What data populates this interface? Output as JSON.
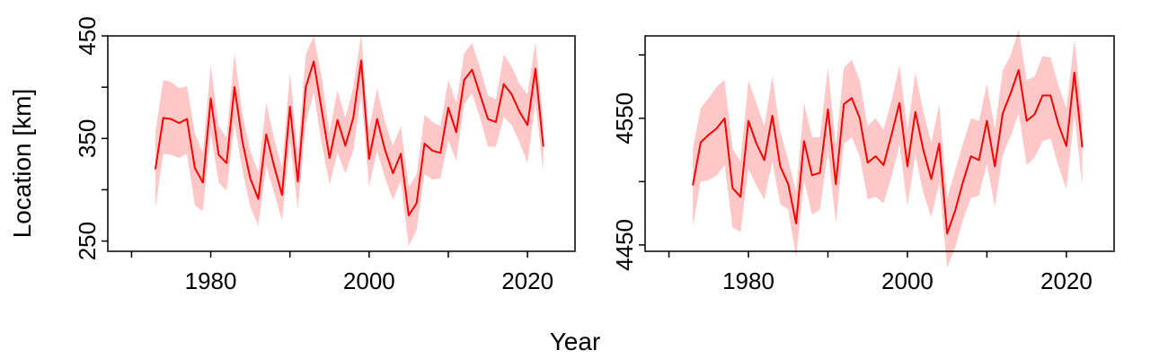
{
  "figure": {
    "shared_xlabel": "Year",
    "shared_ylabel": "Location [km]",
    "colors": {
      "line": "#ff0000",
      "band": "#ffc8c8",
      "axis": "#000000",
      "background": "#ffffff"
    }
  },
  "chart_data": [
    {
      "type": "line",
      "title": "",
      "xlabel": "Year",
      "ylabel": "Location [km]",
      "xlim": [
        1967,
        2026
      ],
      "ylim": [
        240,
        450
      ],
      "xticks": [
        1970,
        1980,
        1990,
        2000,
        2010,
        2020
      ],
      "xtick_labels": [
        "",
        "1980",
        "",
        "2000",
        "",
        "2020"
      ],
      "yticks": [
        250,
        300,
        350,
        400,
        450
      ],
      "ytick_labels": [
        "250",
        "",
        "350",
        "",
        "450"
      ],
      "grid": false,
      "legend": "none",
      "x": [
        1973,
        1974,
        1975,
        1976,
        1977,
        1978,
        1979,
        1980,
        1981,
        1982,
        1983,
        1984,
        1985,
        1986,
        1987,
        1988,
        1989,
        1990,
        1991,
        1992,
        1993,
        1994,
        1995,
        1996,
        1997,
        1998,
        1999,
        2000,
        2001,
        2002,
        2003,
        2004,
        2005,
        2006,
        2007,
        2008,
        2009,
        2010,
        2011,
        2012,
        2013,
        2014,
        2015,
        2016,
        2017,
        2018,
        2019,
        2020,
        2021,
        2022
      ],
      "series": [
        {
          "values": [
            320,
            370,
            369,
            365,
            369,
            321,
            307,
            389,
            334,
            326,
            400,
            347,
            311,
            291,
            354,
            323,
            295,
            381,
            308,
            400,
            425,
            378,
            331,
            368,
            343,
            370,
            426,
            330,
            369,
            339,
            316,
            335,
            275,
            287,
            345,
            338,
            336,
            380,
            356,
            407,
            417,
            393,
            369,
            366,
            403,
            393,
            376,
            363,
            418,
            342
          ],
          "lower": [
            282,
            335,
            334,
            331,
            335,
            285,
            279,
            355,
            307,
            299,
            365,
            319,
            283,
            265,
            323,
            297,
            270,
            347,
            281,
            365,
            395,
            345,
            305,
            336,
            316,
            338,
            393,
            303,
            338,
            312,
            290,
            309,
            245,
            261,
            315,
            310,
            311,
            348,
            328,
            383,
            394,
            370,
            342,
            342,
            371,
            363,
            346,
            326,
            385,
            318
          ],
          "upper": [
            356,
            407,
            405,
            399,
            401,
            355,
            336,
            421,
            362,
            351,
            433,
            374,
            338,
            317,
            385,
            350,
            321,
            414,
            335,
            432,
            450,
            410,
            356,
            397,
            370,
            400,
            451,
            359,
            399,
            366,
            343,
            362,
            302,
            315,
            373,
            366,
            362,
            407,
            384,
            433,
            443,
            419,
            392,
            388,
            432,
            420,
            403,
            393,
            444,
            366
          ]
        }
      ]
    },
    {
      "type": "line",
      "title": "",
      "xlabel": "Year",
      "ylabel": "",
      "xlim": [
        1967,
        2026
      ],
      "ylim": [
        4445,
        4615
      ],
      "xticks": [
        1970,
        1980,
        1990,
        2000,
        2010,
        2020
      ],
      "xtick_labels": [
        "",
        "1980",
        "",
        "2000",
        "",
        "2020"
      ],
      "yticks": [
        4450,
        4500,
        4550,
        4600
      ],
      "ytick_labels": [
        "4450",
        "",
        "4550",
        ""
      ],
      "grid": false,
      "legend": "none",
      "x": [
        1973,
        1974,
        1975,
        1976,
        1977,
        1978,
        1979,
        1980,
        1981,
        1982,
        1983,
        1984,
        1985,
        1986,
        1987,
        1988,
        1989,
        1990,
        1991,
        1992,
        1993,
        1994,
        1995,
        1996,
        1997,
        1998,
        1999,
        2000,
        2001,
        2002,
        2003,
        2004,
        2005,
        2006,
        2007,
        2008,
        2009,
        2010,
        2011,
        2012,
        2013,
        2014,
        2015,
        2016,
        2017,
        2018,
        2019,
        2020,
        2021,
        2022
      ],
      "series": [
        {
          "values": [
            4497,
            4531,
            4537,
            4542,
            4550,
            4495,
            4488,
            4548,
            4530,
            4517,
            4552,
            4512,
            4498,
            4467,
            4532,
            4505,
            4507,
            4557,
            4498,
            4561,
            4566,
            4550,
            4515,
            4520,
            4513,
            4537,
            4562,
            4512,
            4555,
            4525,
            4502,
            4530,
            4459,
            4477,
            4500,
            4520,
            4517,
            4548,
            4512,
            4554,
            4570,
            4588,
            4548,
            4553,
            4568,
            4568,
            4545,
            4528,
            4586,
            4527
          ],
          "lower": [
            4465,
            4500,
            4501,
            4505,
            4513,
            4464,
            4460,
            4510,
            4497,
            4486,
            4516,
            4482,
            4478,
            4440,
            4501,
            4474,
            4478,
            4524,
            4467,
            4530,
            4535,
            4520,
            4486,
            4488,
            4483,
            4504,
            4529,
            4481,
            4521,
            4491,
            4472,
            4499,
            4432,
            4448,
            4470,
            4487,
            4489,
            4514,
            4480,
            4521,
            4536,
            4554,
            4513,
            4519,
            4532,
            4534,
            4512,
            4494,
            4553,
            4497
          ],
          "upper": [
            4526,
            4558,
            4566,
            4575,
            4580,
            4526,
            4516,
            4580,
            4562,
            4544,
            4583,
            4540,
            4517,
            4492,
            4562,
            4535,
            4535,
            4590,
            4529,
            4590,
            4596,
            4580,
            4544,
            4550,
            4541,
            4564,
            4592,
            4541,
            4586,
            4555,
            4531,
            4561,
            4487,
            4509,
            4530,
            4550,
            4548,
            4577,
            4542,
            4588,
            4600,
            4620,
            4580,
            4583,
            4599,
            4598,
            4576,
            4558,
            4612,
            4555
          ]
        }
      ]
    }
  ]
}
